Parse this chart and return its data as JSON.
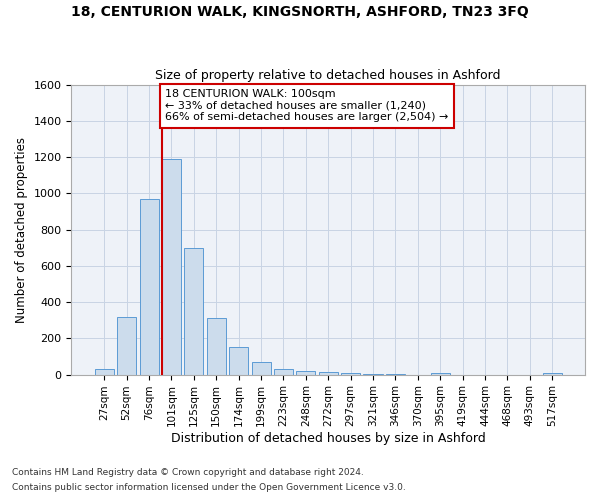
{
  "title1": "18, CENTURION WALK, KINGSNORTH, ASHFORD, TN23 3FQ",
  "title2": "Size of property relative to detached houses in Ashford",
  "xlabel": "Distribution of detached houses by size in Ashford",
  "ylabel": "Number of detached properties",
  "categories": [
    "27sqm",
    "52sqm",
    "76sqm",
    "101sqm",
    "125sqm",
    "150sqm",
    "174sqm",
    "199sqm",
    "223sqm",
    "248sqm",
    "272sqm",
    "297sqm",
    "321sqm",
    "346sqm",
    "370sqm",
    "395sqm",
    "419sqm",
    "444sqm",
    "468sqm",
    "493sqm",
    "517sqm"
  ],
  "values": [
    30,
    320,
    970,
    1190,
    700,
    310,
    150,
    70,
    30,
    20,
    15,
    10,
    5,
    5,
    0,
    8,
    0,
    0,
    0,
    0,
    8
  ],
  "bar_color": "#ccdcec",
  "bar_edgecolor": "#5b9bd5",
  "grid_color": "#c8d4e4",
  "bg_color": "#eef2f8",
  "annotation_text": "18 CENTURION WALK: 100sqm\n← 33% of detached houses are smaller (1,240)\n66% of semi-detached houses are larger (2,504) →",
  "annotation_box_color": "white",
  "annotation_border_color": "#cc0000",
  "vline_color": "#cc0000",
  "vline_x_index": 3,
  "ylim": [
    0,
    1600
  ],
  "yticks": [
    0,
    200,
    400,
    600,
    800,
    1000,
    1200,
    1400,
    1600
  ],
  "footer1": "Contains HM Land Registry data © Crown copyright and database right 2024.",
  "footer2": "Contains public sector information licensed under the Open Government Licence v3.0."
}
